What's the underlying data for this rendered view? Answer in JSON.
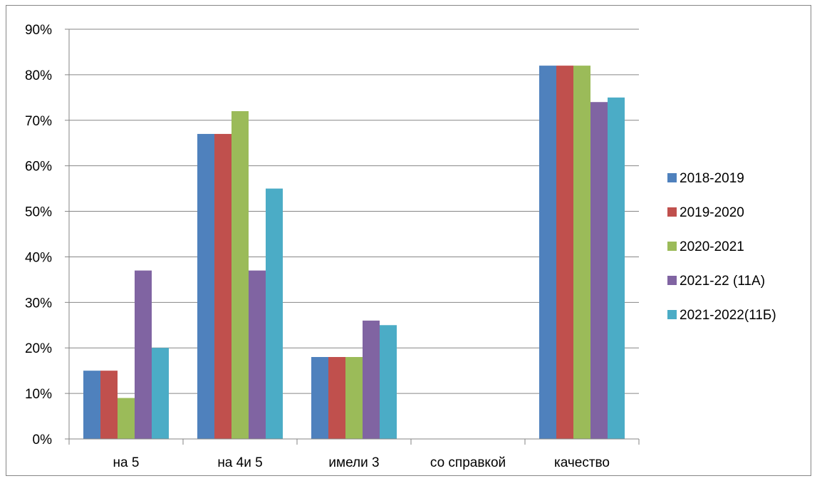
{
  "chart_data": {
    "type": "bar",
    "categories": [
      "на 5",
      "на 4и 5",
      "имели 3",
      "со справкой",
      "качество"
    ],
    "series": [
      {
        "name": "2018-2019",
        "color": "#4F81BD",
        "values": [
          15,
          67,
          18,
          0,
          82
        ]
      },
      {
        "name": "2019-2020",
        "color": "#C0504D",
        "values": [
          15,
          67,
          18,
          0,
          82
        ]
      },
      {
        "name": "2020-2021",
        "color": "#9BBB59",
        "values": [
          9,
          72,
          18,
          0,
          82
        ]
      },
      {
        "name": "2021-22 (11А)",
        "color": "#8064A2",
        "values": [
          37,
          37,
          26,
          0,
          74
        ]
      },
      {
        "name": "2021-2022(11Б)",
        "color": "#4BACC6",
        "values": [
          20,
          55,
          25,
          0,
          75
        ]
      }
    ],
    "y_ticks": [
      "0%",
      "10%",
      "20%",
      "30%",
      "40%",
      "50%",
      "60%",
      "70%",
      "80%",
      "90%"
    ],
    "ylim": [
      0,
      90
    ],
    "y_unit": "%",
    "grid": true,
    "legend_position": "right",
    "title": "",
    "xlabel": "",
    "ylabel": ""
  }
}
